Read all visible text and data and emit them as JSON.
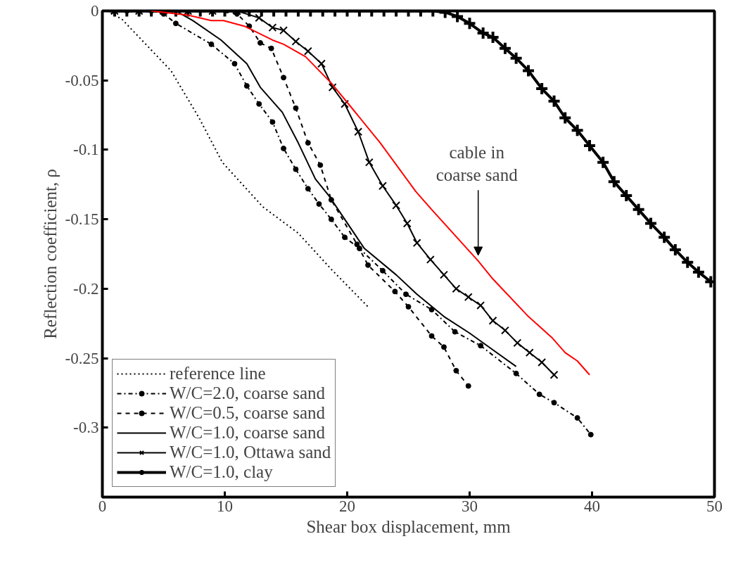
{
  "chart_data": {
    "type": "line",
    "xlabel": "Shear box displacement, mm",
    "ylabel": "Reflection coefficient, ρ",
    "xlim": [
      0,
      50
    ],
    "ylim": [
      -0.35,
      0
    ],
    "xticks": [
      0,
      10,
      20,
      30,
      40,
      50
    ],
    "yticks": [
      0,
      -0.05,
      -0.1,
      -0.15,
      -0.2,
      -0.25,
      -0.3
    ],
    "grid": false,
    "legend": "bottom left",
    "annotations": [
      {
        "text": "cable in\ncoarse sand",
        "x": 30.7,
        "y": -0.18
      }
    ],
    "series": [
      {
        "name": "reference line",
        "color": "#000000",
        "line_style": "dotted",
        "marker": "none",
        "x": [
          0.4,
          1.6,
          5.6,
          7.9,
          9.8,
          13.1,
          16,
          18.7,
          21.7
        ],
        "values": [
          0,
          -0.006,
          -0.043,
          -0.077,
          -0.109,
          -0.141,
          -0.16,
          -0.186,
          -0.213
        ]
      },
      {
        "name": "W/C=2.0, coarse sand",
        "color": "#000000",
        "line_style": "dashdot",
        "marker": "circle",
        "x": [
          1,
          2,
          3,
          4,
          5,
          6,
          8.9,
          10.8,
          11.8,
          12.8,
          13.9,
          14.8,
          15.8,
          16.8,
          17.7,
          18.7,
          19.8,
          21,
          22.9,
          24.8,
          26.9,
          28.8,
          30.9,
          33.8,
          35.7,
          36.9,
          38.8,
          39.9
        ],
        "values": [
          0,
          0,
          0,
          0,
          -0.002,
          -0.009,
          -0.024,
          -0.038,
          -0.054,
          -0.067,
          -0.08,
          -0.099,
          -0.114,
          -0.128,
          -0.139,
          -0.15,
          -0.163,
          -0.171,
          -0.187,
          -0.204,
          -0.215,
          -0.231,
          -0.241,
          -0.261,
          -0.276,
          -0.282,
          -0.293,
          -0.305
        ]
      },
      {
        "name": "W/C=0.5, coarse sand",
        "color": "#000000",
        "line_style": "dashed",
        "marker": "circle",
        "x": [
          1,
          3,
          5,
          7,
          9,
          11,
          12,
          12.9,
          13.8,
          14.8,
          15.8,
          16.8,
          17.8,
          18.7,
          20.8,
          21.7,
          23.9,
          25,
          26.9,
          27.9,
          28.9,
          29.9
        ],
        "values": [
          0,
          0,
          0,
          0,
          0,
          -0.002,
          -0.011,
          -0.023,
          -0.027,
          -0.048,
          -0.07,
          -0.095,
          -0.111,
          -0.136,
          -0.168,
          -0.183,
          -0.202,
          -0.213,
          -0.234,
          -0.242,
          -0.259,
          -0.27
        ]
      },
      {
        "name": "W/C=1.0, coarse sand",
        "color": "#000000",
        "line_style": "solid",
        "marker": "none",
        "x": [
          1,
          4,
          6,
          7.4,
          9.7,
          11.8,
          12.9,
          14.7,
          16,
          17.4,
          18.5,
          21.4,
          24,
          25.7,
          27.9,
          30,
          31.9,
          33.8
        ],
        "values": [
          0,
          0,
          0,
          -0.007,
          -0.021,
          -0.038,
          -0.055,
          -0.073,
          -0.095,
          -0.121,
          -0.133,
          -0.171,
          -0.19,
          -0.204,
          -0.22,
          -0.232,
          -0.244,
          -0.256
        ]
      },
      {
        "name": "W/C=1.0, Ottawa sand",
        "color": "#000000",
        "line_style": "solid",
        "marker": "x",
        "x": [
          1,
          3,
          5,
          7,
          9,
          11,
          12.8,
          13.9,
          14.8,
          15.8,
          16.8,
          17.9,
          18.8,
          19.8,
          20.9,
          21.8,
          22.9,
          24,
          24.9,
          25.7,
          26.8,
          27.9,
          28.9,
          29.9,
          30.9,
          31.9,
          32.9,
          33.9,
          34.9,
          35.9,
          36.9
        ],
        "values": [
          0,
          0,
          0,
          0,
          0,
          0,
          -0.005,
          -0.012,
          -0.014,
          -0.022,
          -0.029,
          -0.038,
          -0.055,
          -0.067,
          -0.087,
          -0.109,
          -0.126,
          -0.14,
          -0.153,
          -0.167,
          -0.179,
          -0.19,
          -0.2,
          -0.206,
          -0.212,
          -0.223,
          -0.23,
          -0.239,
          -0.246,
          -0.253,
          -0.262
        ]
      },
      {
        "name": "W/C=1.0, clay",
        "color": "#000000",
        "line_style": "solid",
        "marker": "cross",
        "x": [
          1,
          2,
          3,
          4,
          5,
          6,
          7,
          8,
          9,
          10,
          11,
          12,
          13,
          14,
          15,
          16,
          17,
          18,
          19,
          20,
          21,
          22,
          23,
          24,
          25,
          26,
          27,
          28,
          29,
          30,
          31.1,
          31.9,
          32.9,
          33.8,
          34.8,
          35.9,
          36.9,
          37.8,
          38.8,
          39.8,
          40.9,
          41.8,
          42.8,
          43.8,
          44.8,
          45.9,
          46.8,
          47.8,
          48.7,
          49.7
        ],
        "values": [
          0,
          0,
          0,
          0,
          0,
          0,
          0,
          0,
          0,
          0,
          0,
          0,
          0,
          0,
          0,
          0,
          0,
          0,
          0,
          0,
          0,
          0,
          0,
          0,
          0,
          0,
          0,
          -0.001,
          -0.004,
          -0.009,
          -0.016,
          -0.019,
          -0.027,
          -0.034,
          -0.043,
          -0.056,
          -0.065,
          -0.077,
          -0.086,
          -0.097,
          -0.109,
          -0.123,
          -0.133,
          -0.143,
          -0.153,
          -0.163,
          -0.172,
          -0.181,
          -0.188,
          -0.195
        ]
      },
      {
        "color": "#ff0000",
        "line_style": "solid",
        "marker": "none",
        "x": [
          4,
          7,
          8.9,
          9.9,
          11.6,
          13.9,
          14.8,
          16.6,
          18.7,
          20.2,
          22.7,
          25.6,
          26.9,
          30.7,
          31.9,
          34.8,
          36.7,
          37.8,
          38.8,
          39.8
        ],
        "values": [
          0,
          -0.003,
          -0.007,
          -0.007,
          -0.011,
          -0.021,
          -0.024,
          -0.033,
          -0.052,
          -0.068,
          -0.095,
          -0.13,
          -0.143,
          -0.18,
          -0.193,
          -0.22,
          -0.235,
          -0.246,
          -0.252,
          -0.262
        ]
      }
    ]
  }
}
